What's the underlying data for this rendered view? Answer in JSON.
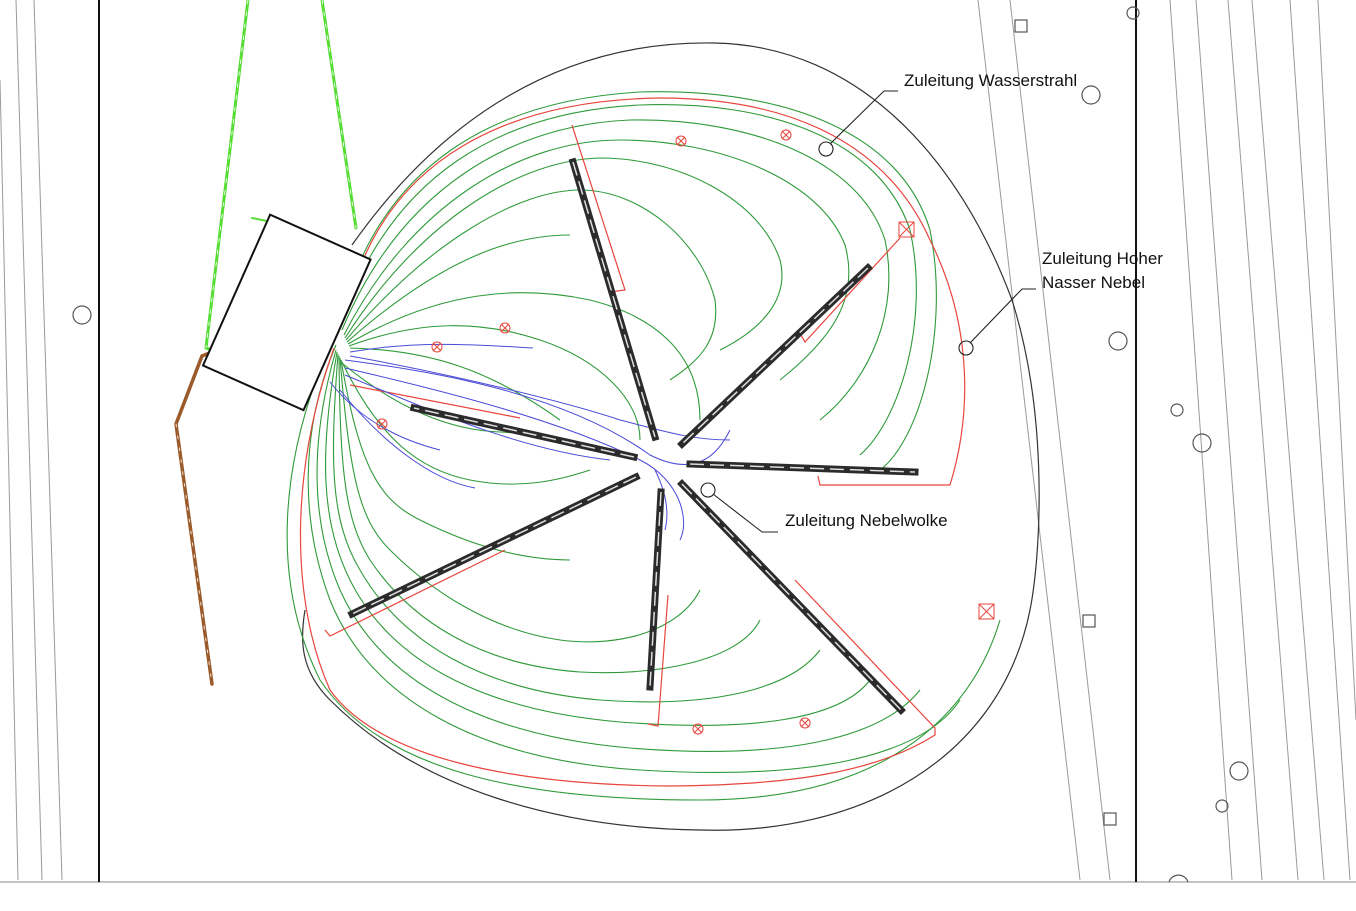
{
  "colors": {
    "background": "#ffffff",
    "outline": "#333333",
    "green_lines": "#2f9a3a",
    "red_lines": "#e8453c",
    "blue_lines": "#4a4ad8",
    "supply_pipe": "#55dd33",
    "drain_pipe": "#9a5a2a",
    "bars": "#2b2b2b",
    "small_label": "#4a7fe0"
  },
  "callouts": {
    "wasserstrahl": {
      "line1": "Zuleitung Wasserstrahl"
    },
    "hoher_nebel": {
      "line1": "Zuleitung Hoher",
      "line2": "Nasser Nebel"
    },
    "nebelwolke": {
      "line1": "Zuleitung Nebelwolke"
    }
  },
  "symbols": {
    "connection": "circle-connection-icon",
    "nozzle": "circle-cross-nozzle-icon",
    "pump": "square-x-pump-icon",
    "column": "square-column-icon"
  }
}
